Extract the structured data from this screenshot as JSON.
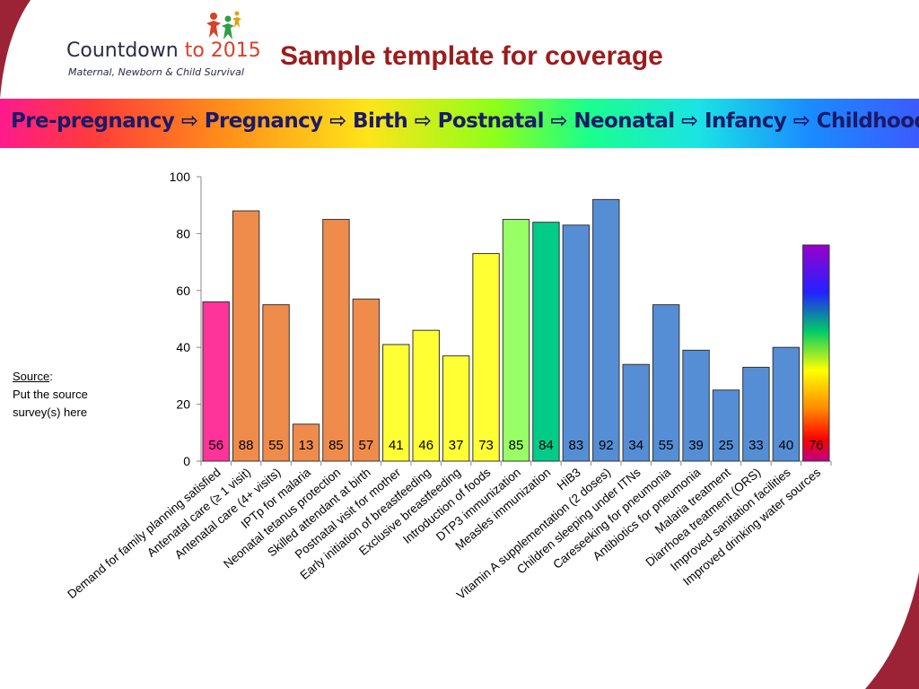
{
  "header": {
    "logo": {
      "name": "Countdown ",
      "name_accent": "to 2015",
      "tagline": "Maternal, Newborn & Child Survival"
    },
    "title": "Sample template for coverage"
  },
  "banner": {
    "text": "Pre-pregnancy ⇨ Pregnancy  ⇨ Birth ⇨ Postnatal ⇨ Neonatal ⇨ Infancy ⇨ Childhood"
  },
  "source": {
    "label": "Source",
    "label_suffix": ":",
    "line1": "Put the source",
    "line2": "survey(s) here"
  },
  "chart_data": {
    "type": "bar",
    "title": "",
    "xlabel": "",
    "ylabel": "",
    "ylim": [
      0,
      100
    ],
    "yticks": [
      0,
      20,
      40,
      60,
      80,
      100
    ],
    "grid": false,
    "legend": "none",
    "data_labels": "inside-bottom",
    "categories": [
      "Demand for family planning satisfied",
      "Antenatal care (≥ 1 visit)",
      "Antenatal care (4+ visits)",
      "IPTp for malaria",
      "Neonatal tetanus protection",
      "Skilled attendant at birth",
      "Postnatal visit for mother",
      "Early initiation of breastfeeding",
      "Exclusive breastfeeding",
      "Introduction of foods",
      "DTP3 immunization",
      "Measles immunization",
      "HiB3",
      "Vitamin A supplementation (2 doses)",
      "Children sleeping under ITNs",
      "Careseeking for pneumonia",
      "Antibiotics for pneumonia",
      "Malaria treatment",
      "Diarrhoea treatment (ORS)",
      "Improved sanitation facilities",
      "Improved drinking water sources"
    ],
    "values": [
      56,
      88,
      55,
      13,
      85,
      57,
      41,
      46,
      37,
      73,
      85,
      84,
      83,
      92,
      34,
      55,
      39,
      25,
      33,
      40,
      76
    ],
    "colors": [
      "#ff3399",
      "#ef8c4c",
      "#ef8c4c",
      "#ef8c4c",
      "#ef8c4c",
      "#ef8c4c",
      "#ffff33",
      "#ffff33",
      "#ffff33",
      "#ffff33",
      "#99ff66",
      "#00cc88",
      "#558ed5",
      "#558ed5",
      "#558ed5",
      "#558ed5",
      "#558ed5",
      "#558ed5",
      "#558ed5",
      "#558ed5",
      "rainbow"
    ]
  }
}
